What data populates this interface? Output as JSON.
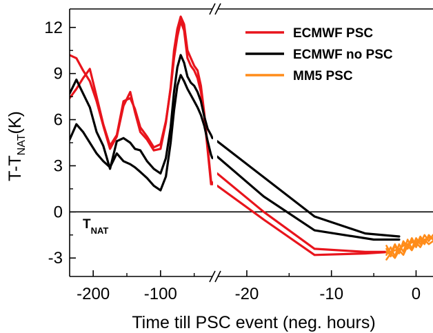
{
  "chart_data": {
    "type": "line",
    "xlabel": "Time till PSC event (neg. hours)",
    "ylabel_main": "T-T",
    "ylabel_sub": "NAT",
    "ylabel_unit": "(K)",
    "ylim": [
      -4.2,
      13.2
    ],
    "y_ticks": [
      -3,
      0,
      3,
      6,
      9,
      12
    ],
    "y_tick_labels": [
      "-3",
      "0",
      "3",
      "6",
      "9",
      "12"
    ],
    "x_segments": [
      {
        "xlim": [
          -235,
          -22
        ],
        "ticks": [
          -200,
          -100
        ],
        "tick_labels": [
          "-200",
          "-100"
        ]
      },
      {
        "xlim": [
          -23.5,
          2
        ],
        "ticks": [
          -20,
          -10,
          0
        ],
        "tick_labels": [
          "-20",
          "-10",
          "0"
        ]
      }
    ],
    "reference_line": {
      "y": 0,
      "label_main": "T",
      "label_sub": "NAT"
    },
    "legend": {
      "position": "top-right",
      "entries": [
        {
          "name": "ECMWF PSC",
          "color": "#e8141c"
        },
        {
          "name": "ECMWF no PSC",
          "color": "#000000"
        },
        {
          "name": "MM5  PSC",
          "color": "#ff8c1a"
        }
      ]
    },
    "series": [
      {
        "name": "ECMWF PSC",
        "color": "#e8141c",
        "segment": 0,
        "x": [
          -235,
          -225,
          -215,
          -205,
          -195,
          -185,
          -175,
          -165,
          -155,
          -145,
          -138,
          -130,
          -120,
          -110,
          -100,
          -92,
          -85,
          -80,
          -75,
          -70,
          -65,
          -60,
          -55,
          -50,
          -45,
          -40,
          -35,
          -30,
          -25,
          -23
        ],
        "y": [
          7.4,
          8,
          8.7,
          9.3,
          7.5,
          5.7,
          4.3,
          5,
          7.2,
          7.4,
          6.7,
          5.5,
          4.9,
          4.2,
          4.4,
          5.9,
          8,
          10,
          11.4,
          12.4,
          11.8,
          10,
          9.5,
          9.2,
          8.7,
          7.8,
          6.2,
          4,
          1.8,
          1.8
        ]
      },
      {
        "name": "ECMWF PSC",
        "color": "#e8141c",
        "segment": 0,
        "x": [
          -235,
          -225,
          -215,
          -205,
          -195,
          -185,
          -175,
          -165,
          -155,
          -145,
          -138,
          -130,
          -120,
          -110,
          -100,
          -92,
          -85,
          -80,
          -75,
          -70,
          -65,
          -60,
          -55,
          -50,
          -45,
          -40,
          -35,
          -30,
          -25,
          -23
        ],
        "y": [
          10.2,
          10,
          9.2,
          8.5,
          7.2,
          5.6,
          4.1,
          4.9,
          6.9,
          7.8,
          6.5,
          5.2,
          4.7,
          4,
          4.1,
          5.8,
          8.1,
          10.5,
          11.9,
          12.7,
          12.2,
          10.5,
          10,
          9.5,
          9.2,
          8.2,
          6.4,
          4.2,
          2,
          1.9
        ]
      },
      {
        "name": "ECMWF no PSC",
        "color": "#000000",
        "segment": 0,
        "x": [
          -235,
          -225,
          -215,
          -205,
          -195,
          -185,
          -175,
          -165,
          -155,
          -145,
          -138,
          -130,
          -120,
          -110,
          -100,
          -92,
          -85,
          -80,
          -75,
          -70,
          -65,
          -60,
          -55,
          -50,
          -45,
          -40,
          -35,
          -30,
          -25,
          -23
        ],
        "y": [
          7.7,
          8.6,
          7.7,
          6.8,
          5.2,
          4.3,
          2.8,
          4.6,
          4.8,
          4.5,
          4.1,
          4,
          3.3,
          2.8,
          2.5,
          3.5,
          5.5,
          7.8,
          9.4,
          10.2,
          9.7,
          8.8,
          8.4,
          8.2,
          7.8,
          7.2,
          6.2,
          5.4,
          5,
          4.8
        ]
      },
      {
        "name": "ECMWF no PSC",
        "color": "#000000",
        "segment": 0,
        "x": [
          -235,
          -225,
          -215,
          -205,
          -195,
          -185,
          -175,
          -165,
          -155,
          -145,
          -138,
          -130,
          -120,
          -110,
          -100,
          -92,
          -85,
          -80,
          -75,
          -70,
          -65,
          -60,
          -55,
          -50,
          -45,
          -40,
          -35,
          -30,
          -25,
          -23
        ],
        "y": [
          4.7,
          5.7,
          5.2,
          4.5,
          3.8,
          3.3,
          2.9,
          3.8,
          3.3,
          3.1,
          2.9,
          2.6,
          2.2,
          1.7,
          1.4,
          2.3,
          4.5,
          6.6,
          8.2,
          8.9,
          8.5,
          8,
          7.6,
          7.2,
          6.8,
          6.3,
          5.6,
          4.6,
          3.7,
          3.5
        ]
      },
      {
        "name": "ECMWF PSC",
        "color": "#e8141c",
        "segment": 1,
        "x": [
          -23.5,
          -18,
          -12,
          -6,
          -3
        ],
        "y": [
          2.5,
          0,
          -2.4,
          -2.6,
          -2.6
        ]
      },
      {
        "name": "ECMWF PSC",
        "color": "#e8141c",
        "segment": 1,
        "x": [
          -23.5,
          -18,
          -12,
          -6,
          -3
        ],
        "y": [
          1.7,
          -0.5,
          -2.8,
          -2.7,
          -2.6
        ]
      },
      {
        "name": "ECMWF no PSC",
        "color": "#000000",
        "segment": 1,
        "x": [
          -23.5,
          -12,
          -6,
          -2
        ],
        "y": [
          4.6,
          -0.3,
          -1.4,
          -1.6
        ]
      },
      {
        "name": "ECMWF no PSC",
        "color": "#000000",
        "segment": 1,
        "x": [
          -23.5,
          -18,
          -12,
          -5,
          -2
        ],
        "y": [
          3.6,
          1,
          -1.2,
          -1.8,
          -1.8
        ]
      },
      {
        "name": "MM5  PSC",
        "color": "#ff8c1a",
        "segment": 1,
        "x": [
          -3.5,
          -3,
          -2.5,
          -2,
          -1.5,
          -1,
          -0.5,
          0,
          0.5,
          1,
          1.5,
          2
        ],
        "y": [
          -2.4,
          -2.9,
          -2.2,
          -2.7,
          -1.9,
          -2.3,
          -1.7,
          -2.2,
          -1.6,
          -2,
          -1.6,
          -1.8
        ]
      },
      {
        "name": "MM5  PSC",
        "color": "#ff8c1a",
        "segment": 1,
        "x": [
          -3.5,
          -3,
          -2.5,
          -2,
          -1.5,
          -1,
          -0.5,
          0,
          0.5,
          1,
          1.5,
          2
        ],
        "y": [
          -2.8,
          -2.3,
          -2.9,
          -2.1,
          -2.6,
          -1.8,
          -2.4,
          -1.7,
          -2.1,
          -1.5,
          -1.9,
          -1.5
        ]
      },
      {
        "name": "MM5  PSC",
        "color": "#ff8c1a",
        "segment": 1,
        "x": [
          -3.5,
          -3,
          -2.5,
          -2,
          -1.5,
          -1,
          -0.5,
          0,
          0.5,
          1,
          1.5,
          2
        ],
        "y": [
          -2.6,
          -2.6,
          -2.5,
          -2.4,
          -2.2,
          -2.1,
          -2,
          -1.9,
          -1.9,
          -1.8,
          -1.7,
          -1.7
        ]
      },
      {
        "name": "MM5  PSC",
        "color": "#ff8c1a",
        "segment": 1,
        "x": [
          -3.5,
          -3,
          -2.5,
          -2,
          -1.5,
          -1,
          -0.5,
          0,
          0.5,
          1,
          1.5,
          2
        ],
        "y": [
          -3.1,
          -2.7,
          -3,
          -2.5,
          -2.8,
          -2.2,
          -2.5,
          -2,
          -2.3,
          -1.8,
          -2.1,
          -1.9
        ]
      },
      {
        "name": "MM5  PSC",
        "color": "#ff8c1a",
        "segment": 1,
        "x": [
          -3.5,
          -3,
          -2.5,
          -2,
          -1.5,
          -1,
          -0.5,
          0,
          0.5,
          1,
          1.5,
          2
        ],
        "y": [
          -2.2,
          -2.7,
          -2.1,
          -2.6,
          -2,
          -2.4,
          -1.8,
          -2.3,
          -1.7,
          -2.1,
          -1.5,
          -1.8
        ]
      }
    ]
  }
}
